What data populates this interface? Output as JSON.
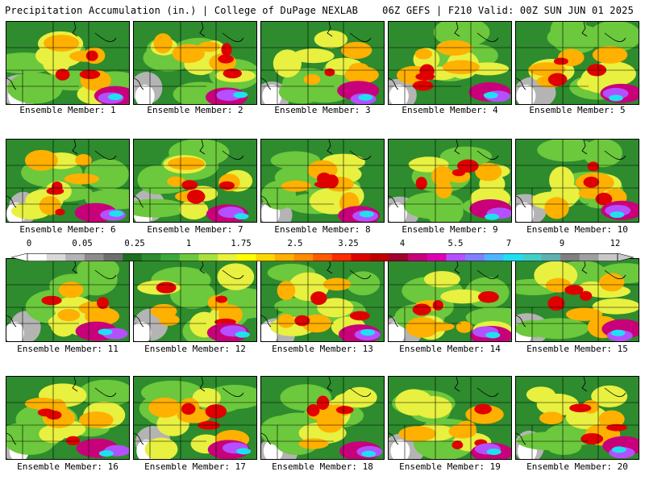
{
  "header": {
    "left_text": "Precipitation Accumulation (in.) | College of DuPage NEXLAB",
    "right_text": "06Z GEFS | F210 Valid: 00Z SUN JUN 01 2025"
  },
  "caption_prefix": "Ensemble Member: ",
  "members": [
    1,
    2,
    3,
    4,
    5,
    6,
    7,
    8,
    9,
    10,
    11,
    12,
    13,
    14,
    15,
    16,
    17,
    18,
    19,
    20
  ],
  "colorbar": {
    "tick_labels": [
      "0",
      "0.05",
      "0.25",
      "1",
      "1.75",
      "2.5",
      "3.25",
      "4",
      "5.5",
      "7",
      "9",
      "12"
    ],
    "colors": [
      "#ffffff",
      "#d9d9d9",
      "#b4b4b4",
      "#8c8c8c",
      "#6e6e6e",
      "#1e6e1e",
      "#2e8b2e",
      "#3ca83c",
      "#6cc83c",
      "#a8e040",
      "#e8f040",
      "#ffff00",
      "#ffd700",
      "#ffb000",
      "#ff8c00",
      "#ff5a00",
      "#ff2a00",
      "#e00000",
      "#c00000",
      "#a00030",
      "#c8007a",
      "#e000b4",
      "#b450ff",
      "#8080ff",
      "#50b4ff",
      "#20e0f0",
      "#40d0c8",
      "#60b0b0",
      "#808080",
      "#a0a0a0",
      "#c8c8c8"
    ]
  }
}
